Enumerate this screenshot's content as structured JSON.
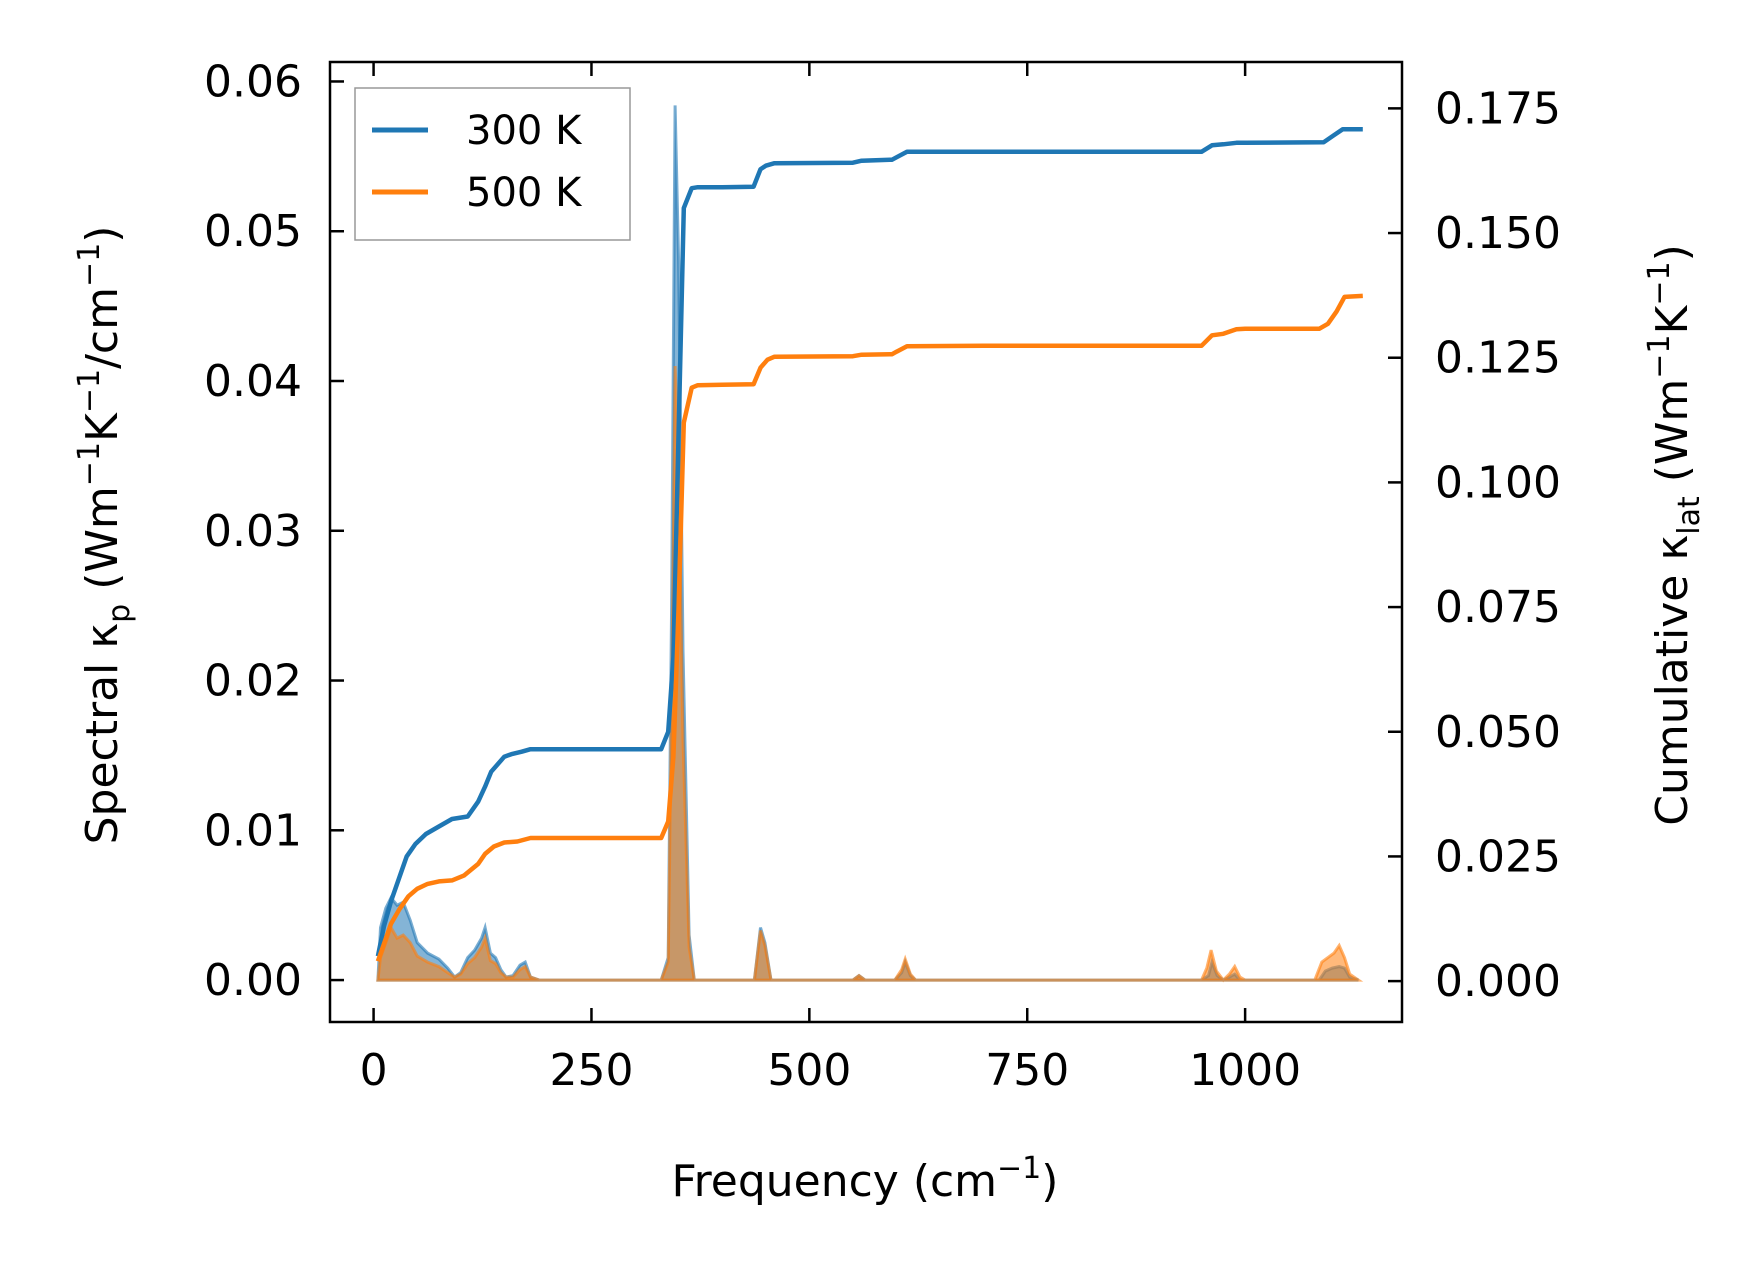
{
  "chart_data": {
    "type": "line",
    "xlabel": "Frequency (cm",
    "xlabel_sup": "−1",
    "xlabel_end": ")",
    "ylabel_left": {
      "p1": "Spectral κ",
      "p1_sub": "p",
      "p2": " (Wm",
      "p2_sup": "−1",
      "p3": "K",
      "p3_sup": "−1",
      "p4": "/cm",
      "p4_sup": "−1",
      "p5": ")"
    },
    "ylabel_right": {
      "p1": "Cumulative κ",
      "p1_sub": "lat",
      "p2": " (Wm",
      "p2_sup": "−1",
      "p3": "K",
      "p3_sup": "−1",
      "p4": ")"
    },
    "xlim": [
      -50,
      1180
    ],
    "ylim_left": [
      -0.0028,
      0.0613
    ],
    "ylim_right": [
      -0.0082,
      0.1843
    ],
    "x_ticks": [
      0,
      250,
      500,
      750,
      1000
    ],
    "x_tick_labels": [
      "0",
      "250",
      "500",
      "750",
      "1000"
    ],
    "y_left_ticks": [
      0.0,
      0.01,
      0.02,
      0.03,
      0.04,
      0.05,
      0.06
    ],
    "y_left_tick_labels": [
      "0.00",
      "0.01",
      "0.02",
      "0.03",
      "0.04",
      "0.05",
      "0.06"
    ],
    "y_right_ticks": [
      0.0,
      0.025,
      0.05,
      0.075,
      0.1,
      0.125,
      0.15,
      0.175
    ],
    "y_right_tick_labels": [
      "0.000",
      "0.025",
      "0.050",
      "0.075",
      "0.100",
      "0.125",
      "0.150",
      "0.175"
    ],
    "legend_position": "top-left",
    "grid": false,
    "series": [
      {
        "name": "300 K",
        "color": "#1f77b4",
        "cumulative": [
          [
            5,
            0.005
          ],
          [
            12,
            0.011
          ],
          [
            20,
            0.016
          ],
          [
            30,
            0.021
          ],
          [
            38,
            0.025
          ],
          [
            48,
            0.0275
          ],
          [
            60,
            0.0295
          ],
          [
            75,
            0.031
          ],
          [
            90,
            0.0325
          ],
          [
            108,
            0.033
          ],
          [
            120,
            0.036
          ],
          [
            128,
            0.039
          ],
          [
            135,
            0.042
          ],
          [
            150,
            0.045
          ],
          [
            158,
            0.0455
          ],
          [
            170,
            0.046
          ],
          [
            180,
            0.0465
          ],
          [
            200,
            0.0465
          ],
          [
            330,
            0.0465
          ],
          [
            338,
            0.05
          ],
          [
            344,
            0.065
          ],
          [
            350,
            0.11
          ],
          [
            356,
            0.155
          ],
          [
            365,
            0.159
          ],
          [
            372,
            0.1592
          ],
          [
            400,
            0.1592
          ],
          [
            436,
            0.1593
          ],
          [
            444,
            0.1628
          ],
          [
            450,
            0.1635
          ],
          [
            460,
            0.164
          ],
          [
            550,
            0.1641
          ],
          [
            560,
            0.1645
          ],
          [
            595,
            0.1647
          ],
          [
            600,
            0.1652
          ],
          [
            612,
            0.1663
          ],
          [
            700,
            0.1663
          ],
          [
            950,
            0.1663
          ],
          [
            962,
            0.1676
          ],
          [
            975,
            0.1678
          ],
          [
            990,
            0.1681
          ],
          [
            1000,
            0.1681
          ],
          [
            1090,
            0.1682
          ],
          [
            1100,
            0.1694
          ],
          [
            1112,
            0.1708
          ],
          [
            1135,
            0.1708
          ]
        ],
        "spectral": [
          [
            5,
            0.0
          ],
          [
            8,
            0.0035
          ],
          [
            14,
            0.0048
          ],
          [
            20,
            0.0055
          ],
          [
            27,
            0.005
          ],
          [
            34,
            0.0052
          ],
          [
            42,
            0.004
          ],
          [
            50,
            0.0025
          ],
          [
            62,
            0.0018
          ],
          [
            75,
            0.0014
          ],
          [
            85,
            0.0008
          ],
          [
            93,
            0.0002
          ],
          [
            100,
            0.0005
          ],
          [
            108,
            0.0015
          ],
          [
            116,
            0.002
          ],
          [
            124,
            0.0028
          ],
          [
            128,
            0.0035
          ],
          [
            134,
            0.0018
          ],
          [
            140,
            0.0015
          ],
          [
            146,
            0.0007
          ],
          [
            152,
            0.0002
          ],
          [
            160,
            0.0003
          ],
          [
            168,
            0.001
          ],
          [
            174,
            0.0012
          ],
          [
            180,
            0.0002
          ],
          [
            190,
            0.0
          ],
          [
            330,
            0.0
          ],
          [
            338,
            0.0015
          ],
          [
            342,
            0.025
          ],
          [
            346,
            0.0584
          ],
          [
            350,
            0.048
          ],
          [
            355,
            0.022
          ],
          [
            362,
            0.003
          ],
          [
            368,
            0.0
          ],
          [
            437,
            0.0
          ],
          [
            444,
            0.0035
          ],
          [
            449,
            0.0025
          ],
          [
            456,
            0.0
          ],
          [
            550,
            0.0
          ],
          [
            557,
            0.0003
          ],
          [
            564,
            0.0
          ],
          [
            598,
            0.0
          ],
          [
            606,
            0.0005
          ],
          [
            610,
            0.0012
          ],
          [
            616,
            0.0003
          ],
          [
            622,
            0.0
          ],
          [
            950,
            0.0
          ],
          [
            958,
            0.0003
          ],
          [
            962,
            0.0012
          ],
          [
            968,
            0.0003
          ],
          [
            975,
            0.0
          ],
          [
            982,
            0.0002
          ],
          [
            988,
            0.0004
          ],
          [
            994,
            0.0
          ],
          [
            1085,
            0.0
          ],
          [
            1092,
            0.0006
          ],
          [
            1100,
            0.0008
          ],
          [
            1108,
            0.0009
          ],
          [
            1114,
            0.0008
          ],
          [
            1120,
            0.0002
          ],
          [
            1130,
            0.0
          ]
        ]
      },
      {
        "name": "500 K",
        "color": "#ff7f0e",
        "cumulative": [
          [
            5,
            0.004
          ],
          [
            12,
            0.0075
          ],
          [
            20,
            0.0115
          ],
          [
            30,
            0.0145
          ],
          [
            40,
            0.017
          ],
          [
            50,
            0.0185
          ],
          [
            62,
            0.0195
          ],
          [
            75,
            0.02
          ],
          [
            90,
            0.0202
          ],
          [
            104,
            0.0212
          ],
          [
            120,
            0.0235
          ],
          [
            128,
            0.0255
          ],
          [
            138,
            0.027
          ],
          [
            150,
            0.0278
          ],
          [
            165,
            0.028
          ],
          [
            180,
            0.0287
          ],
          [
            200,
            0.0287
          ],
          [
            330,
            0.0287
          ],
          [
            338,
            0.032
          ],
          [
            344,
            0.045
          ],
          [
            350,
            0.075
          ],
          [
            356,
            0.112
          ],
          [
            365,
            0.119
          ],
          [
            372,
            0.1195
          ],
          [
            400,
            0.1196
          ],
          [
            436,
            0.1197
          ],
          [
            444,
            0.123
          ],
          [
            452,
            0.1246
          ],
          [
            460,
            0.1252
          ],
          [
            550,
            0.1253
          ],
          [
            560,
            0.1256
          ],
          [
            595,
            0.1257
          ],
          [
            600,
            0.1262
          ],
          [
            612,
            0.1273
          ],
          [
            700,
            0.1274
          ],
          [
            950,
            0.1274
          ],
          [
            962,
            0.1295
          ],
          [
            975,
            0.1298
          ],
          [
            990,
            0.1307
          ],
          [
            1000,
            0.1308
          ],
          [
            1085,
            0.1308
          ],
          [
            1095,
            0.1318
          ],
          [
            1105,
            0.1343
          ],
          [
            1114,
            0.1372
          ],
          [
            1135,
            0.1374
          ]
        ],
        "spectral": [
          [
            5,
            0.0
          ],
          [
            8,
            0.0015
          ],
          [
            14,
            0.0025
          ],
          [
            20,
            0.0035
          ],
          [
            27,
            0.0028
          ],
          [
            34,
            0.003
          ],
          [
            42,
            0.0025
          ],
          [
            50,
            0.0016
          ],
          [
            62,
            0.0012
          ],
          [
            75,
            0.0009
          ],
          [
            85,
            0.0005
          ],
          [
            93,
            0.0002
          ],
          [
            100,
            0.0004
          ],
          [
            108,
            0.0011
          ],
          [
            116,
            0.0015
          ],
          [
            124,
            0.0022
          ],
          [
            128,
            0.0028
          ],
          [
            134,
            0.0013
          ],
          [
            140,
            0.0011
          ],
          [
            146,
            0.0005
          ],
          [
            152,
            0.0002
          ],
          [
            160,
            0.0002
          ],
          [
            168,
            0.0007
          ],
          [
            174,
            0.0009
          ],
          [
            180,
            0.0002
          ],
          [
            190,
            0.0
          ],
          [
            330,
            0.0
          ],
          [
            338,
            0.0012
          ],
          [
            342,
            0.018
          ],
          [
            346,
            0.041
          ],
          [
            350,
            0.034
          ],
          [
            355,
            0.016
          ],
          [
            362,
            0.0022
          ],
          [
            368,
            0.0
          ],
          [
            437,
            0.0
          ],
          [
            444,
            0.0033
          ],
          [
            449,
            0.0023
          ],
          [
            456,
            0.0
          ],
          [
            550,
            0.0
          ],
          [
            557,
            0.0003
          ],
          [
            564,
            0.0
          ],
          [
            598,
            0.0
          ],
          [
            606,
            0.0007
          ],
          [
            610,
            0.0014
          ],
          [
            616,
            0.0004
          ],
          [
            622,
            0.0
          ],
          [
            950,
            0.0
          ],
          [
            956,
            0.0008
          ],
          [
            961,
            0.002
          ],
          [
            967,
            0.0006
          ],
          [
            975,
            0.0
          ],
          [
            982,
            0.0004
          ],
          [
            988,
            0.0009
          ],
          [
            994,
            0.0002
          ],
          [
            1000,
            0.0
          ],
          [
            1080,
            0.0
          ],
          [
            1088,
            0.0012
          ],
          [
            1095,
            0.0015
          ],
          [
            1102,
            0.0018
          ],
          [
            1108,
            0.0023
          ],
          [
            1114,
            0.0015
          ],
          [
            1120,
            0.0004
          ],
          [
            1130,
            0.0
          ]
        ]
      }
    ]
  }
}
